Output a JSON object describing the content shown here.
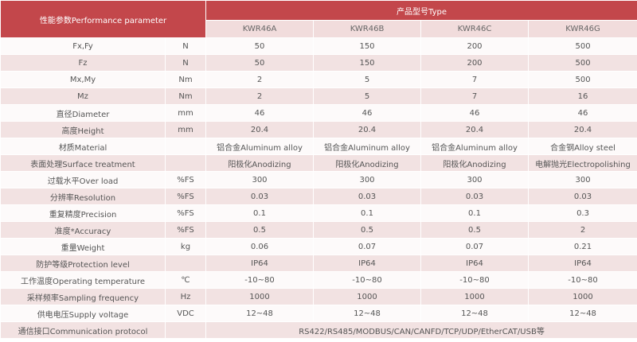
{
  "header": {
    "title": "性能参数Performance parameter",
    "type_title": "产品型号Type",
    "models": [
      "KWR46A",
      "KWR46B",
      "KWR46C",
      "KWR46G"
    ]
  },
  "rows": [
    {
      "label": "Fx,Fy",
      "unit": "N",
      "values": [
        "50",
        "150",
        "200",
        "500"
      ]
    },
    {
      "label": "Fz",
      "unit": "N",
      "values": [
        "50",
        "150",
        "200",
        "500"
      ]
    },
    {
      "label": "Mx,My",
      "unit": "Nm",
      "values": [
        "2",
        "5",
        "7",
        "500"
      ]
    },
    {
      "label": "Mz",
      "unit": "Nm",
      "values": [
        "2",
        "5",
        "7",
        "16"
      ]
    },
    {
      "label": "直径Diameter",
      "unit": "mm",
      "values": [
        "46",
        "46",
        "46",
        "46"
      ]
    },
    {
      "label": "高度Height",
      "unit": "mm",
      "values": [
        "20.4",
        "20.4",
        "20.4",
        "20.4"
      ]
    },
    {
      "label": "材质Material",
      "values": [
        "铝合金Aluminum alloy",
        "铝合金Aluminum alloy",
        "铝合金Aluminum alloy",
        "合金钢Alloy steel"
      ]
    },
    {
      "label": "表面处理Surface treatment",
      "values": [
        "阳极化Anodizing",
        "阳极化Anodizing",
        "阳极化Anodizing",
        "电解抛光Electropolishing"
      ]
    },
    {
      "label": "过载水平Over load",
      "unit": "%FS",
      "values": [
        "300",
        "300",
        "300",
        "300"
      ]
    },
    {
      "label": "分辨率Resolution",
      "unit": "%FS",
      "values": [
        "0.03",
        "0.03",
        "0.03",
        "0.03"
      ]
    },
    {
      "label": "重复精度Precision",
      "unit": "%FS",
      "values": [
        "0.1",
        "0.1",
        "0.1",
        "0.3"
      ]
    },
    {
      "label": "准度*Accuracy",
      "unit": "%FS",
      "values": [
        "0.5",
        "0.5",
        "0.5",
        "2"
      ]
    },
    {
      "label": "重量Weight",
      "unit": "kg",
      "values": [
        "0.06",
        "0.07",
        "0.07",
        "0.21"
      ]
    },
    {
      "label": "防护等级Protection level",
      "values": [
        "IP64",
        "IP64",
        "IP64",
        "IP64"
      ]
    },
    {
      "label": "工作温度Operating temperature",
      "unit": "℃",
      "values": [
        "-10~80",
        "-10~80",
        "-10~80",
        "-10~80"
      ]
    },
    {
      "label": "采样频率Sampling frequency",
      "unit": "Hz",
      "values": [
        "1000",
        "1000",
        "1000",
        "1000"
      ]
    },
    {
      "label": "供电电压Supply voltage",
      "unit": "VDC",
      "values": [
        "12~48",
        "12~48",
        "12~48",
        "12~48"
      ]
    },
    {
      "label": "通信接口Communication protocol",
      "value": "RS422/RS485/MODBUS/CAN/CANFD/TCP/UDP/EtherCAT/USB等"
    }
  ]
}
